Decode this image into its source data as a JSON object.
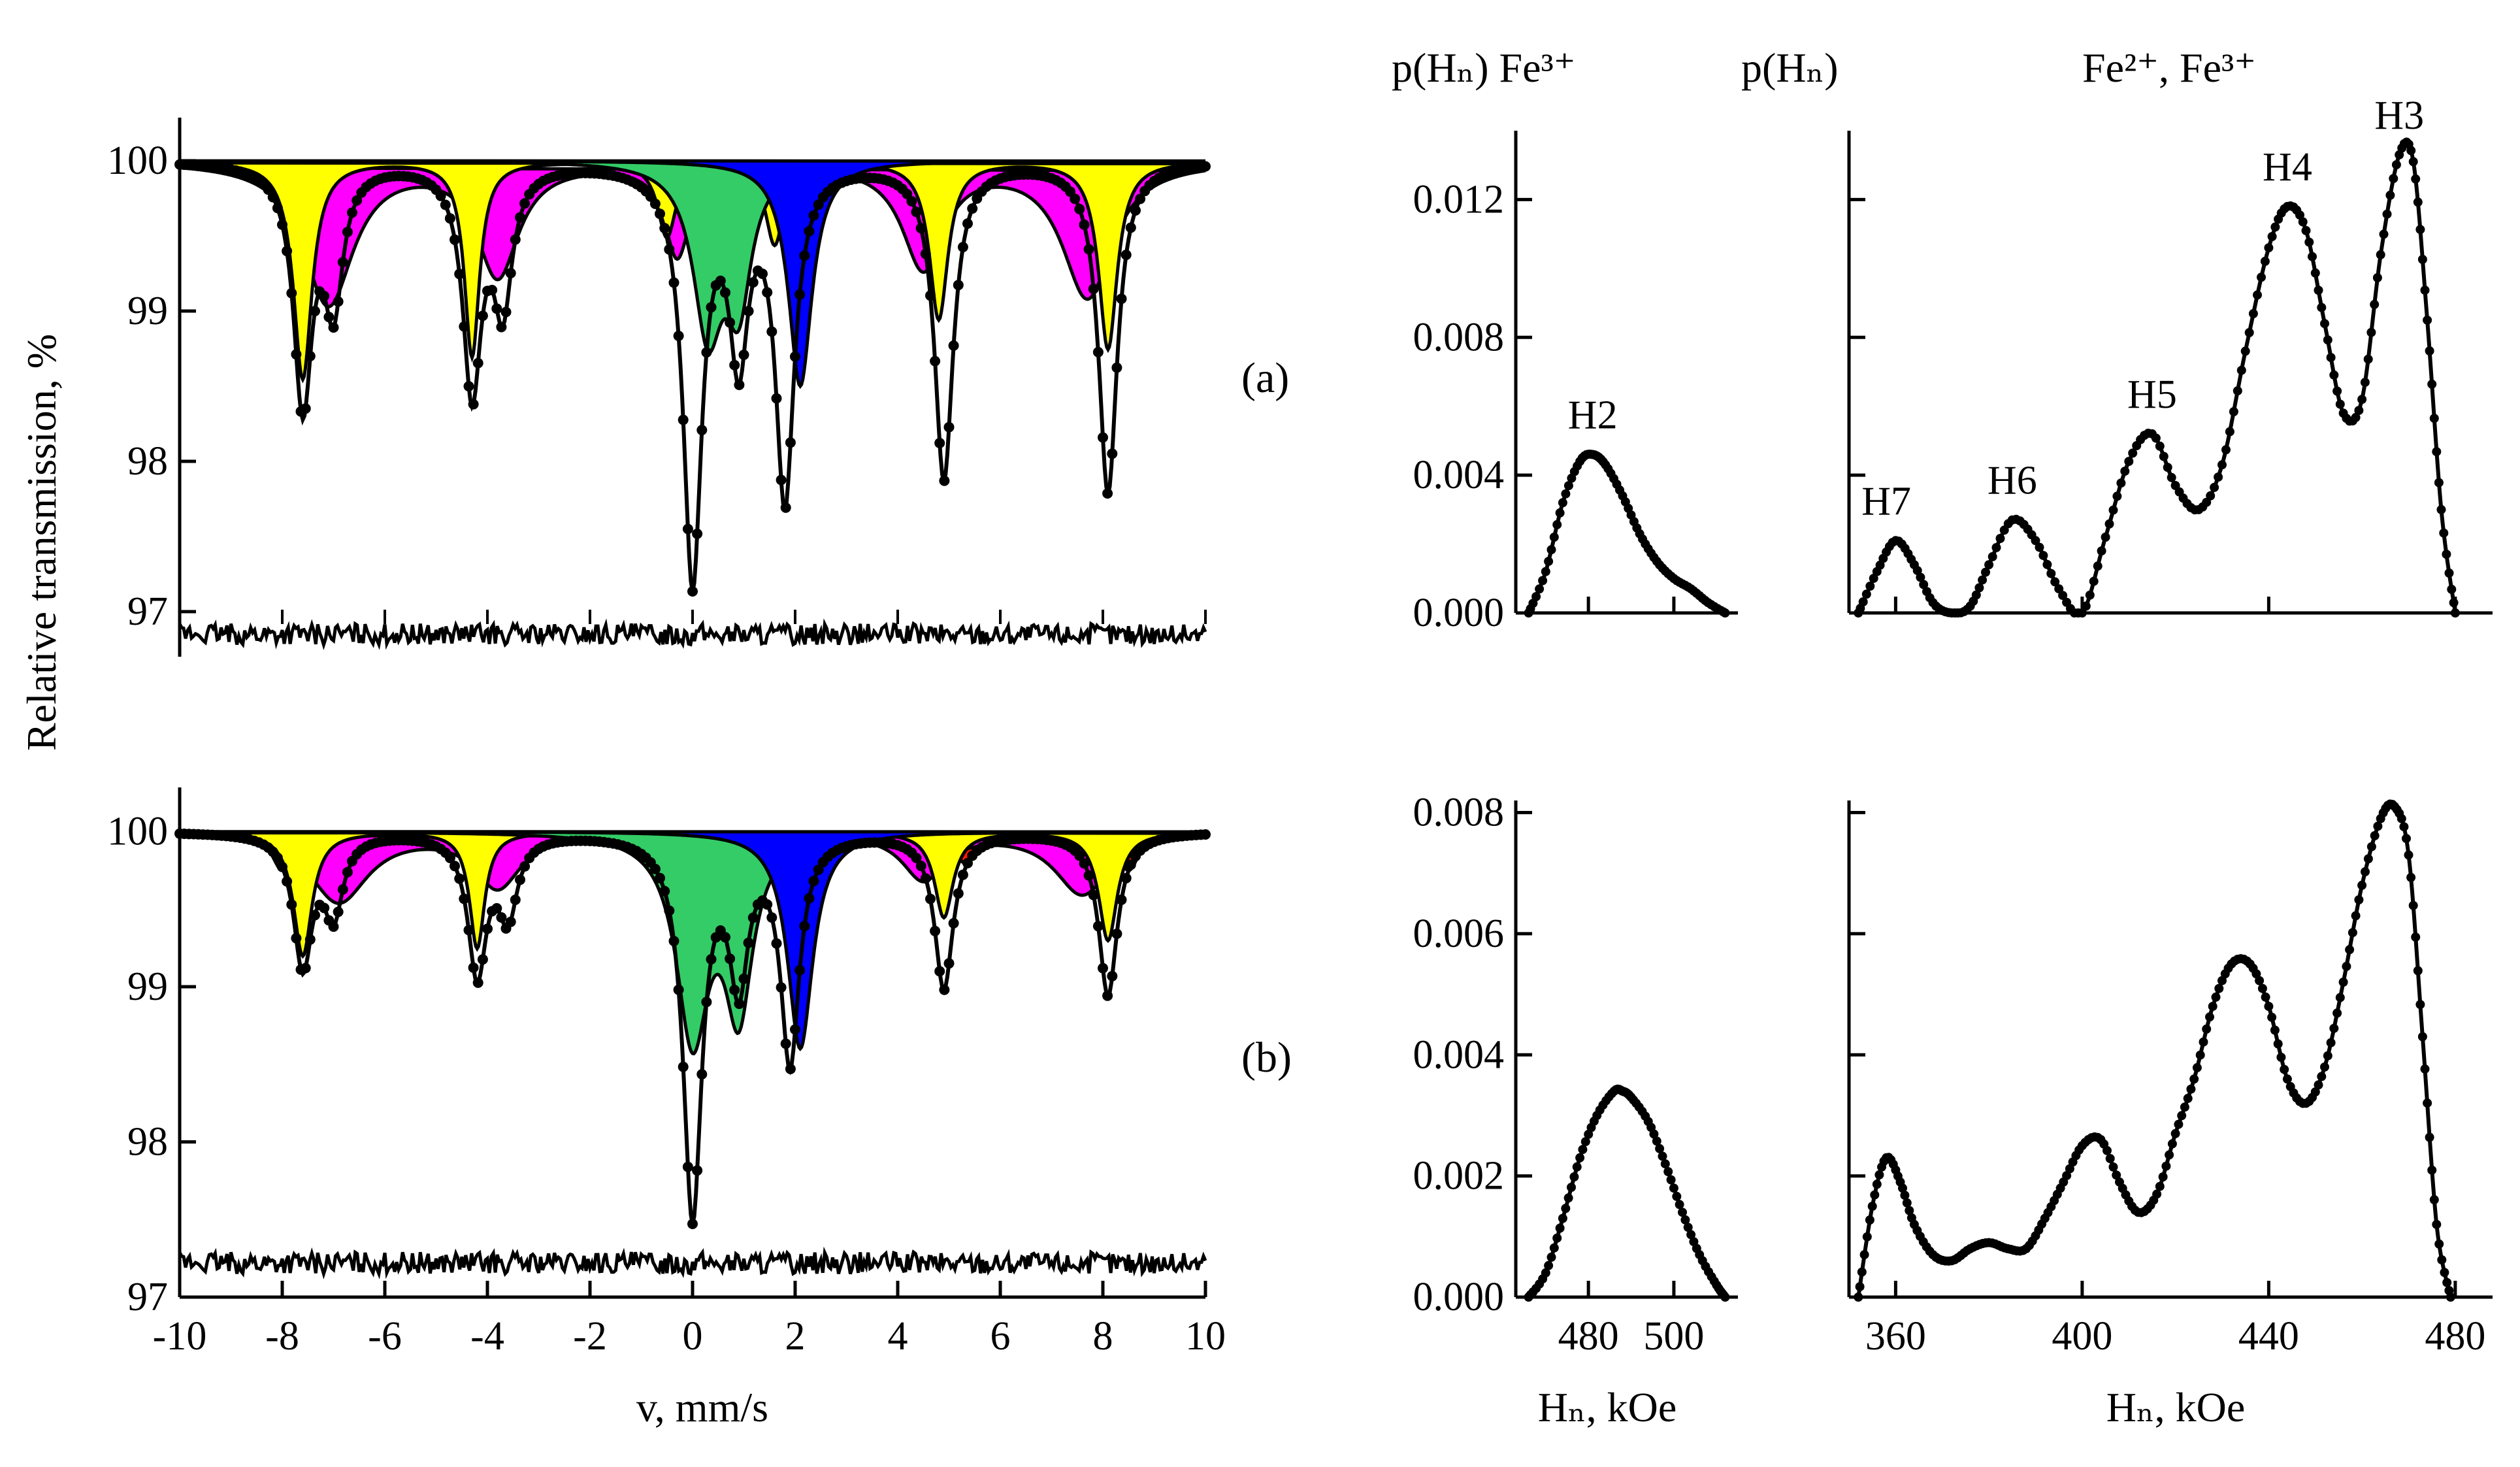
{
  "figure": {
    "ylabel_main": "Relative transmission, %",
    "xlabel_main": "v, mm/s",
    "header_left": "p(Hₙ)  Fe³⁺",
    "header_right_p": "p(Hₙ)",
    "header_right_fe": "Fe²⁺, Fe³⁺",
    "xlabel_hn": "Hₙ, kOe",
    "label_a": "(a)",
    "label_b": "(b)"
  },
  "colors": {
    "red": "#ff1a00",
    "yellow": "#ffff00",
    "magenta": "#ff00ff",
    "green": "#33cc66",
    "blue": "#0000ff",
    "line": "#000000"
  },
  "chart_data": [
    {
      "id": "spectrum-a",
      "type": "line",
      "xlim": [
        -10,
        10
      ],
      "ylim": [
        96.7,
        100.2
      ],
      "yticks": [
        97,
        98,
        99,
        100
      ],
      "xticks": [
        -10,
        -8,
        -6,
        -4,
        -2,
        0,
        2,
        4,
        6,
        8,
        10
      ],
      "experimental_dips": [
        {
          "v": -7.6,
          "depth": 1.6
        },
        {
          "v": -7.0,
          "depth": 0.9
        },
        {
          "v": -4.3,
          "depth": 1.5
        },
        {
          "v": -3.7,
          "depth": 0.9
        },
        {
          "v": 0.0,
          "depth": 2.75
        },
        {
          "v": 0.9,
          "depth": 1.2
        },
        {
          "v": 1.8,
          "depth": 2.2
        },
        {
          "v": 4.9,
          "depth": 2.1
        },
        {
          "v": 8.1,
          "depth": 2.2
        }
      ],
      "residual_level": 96.85
    },
    {
      "id": "spectrum-b",
      "type": "line",
      "xlim": [
        -10,
        10
      ],
      "ylim": [
        97,
        100.2
      ],
      "yticks": [
        97,
        98,
        99,
        100
      ],
      "xticks": [
        -10,
        -8,
        -6,
        -4,
        -2,
        0,
        2,
        4,
        6,
        8,
        10
      ],
      "experimental_dips": [
        {
          "v": -7.6,
          "depth": 0.85
        },
        {
          "v": -7.0,
          "depth": 0.5
        },
        {
          "v": -4.2,
          "depth": 0.9
        },
        {
          "v": -3.6,
          "depth": 0.5
        },
        {
          "v": 0.0,
          "depth": 2.45
        },
        {
          "v": 0.9,
          "depth": 0.9
        },
        {
          "v": 1.9,
          "depth": 1.45
        },
        {
          "v": 4.9,
          "depth": 1.0
        },
        {
          "v": 8.1,
          "depth": 1.05
        }
      ],
      "residual_level": 97.22
    },
    {
      "id": "pHn-fe3-a",
      "type": "line",
      "xlim": [
        463,
        515
      ],
      "xticks": [
        480,
        500
      ],
      "ylim": [
        0,
        0.014
      ],
      "yticks": [
        0.0,
        0.004,
        0.008,
        0.012
      ],
      "x": [
        466,
        470,
        474,
        478,
        481,
        484,
        488,
        492,
        496,
        500,
        504,
        508,
        512
      ],
      "y": [
        0.0,
        0.0012,
        0.0032,
        0.0044,
        0.0046,
        0.0043,
        0.0034,
        0.0023,
        0.0015,
        0.001,
        0.0007,
        0.0003,
        0.0
      ],
      "peak_labels": [
        {
          "text": "H2",
          "x": 481,
          "y": 0.0046
        }
      ]
    },
    {
      "id": "pHn-fe23-a",
      "type": "line",
      "xlim": [
        350,
        488
      ],
      "xticks": [
        360,
        400,
        440,
        480
      ],
      "ylim": [
        0,
        0.014
      ],
      "yticks": [
        0.0,
        0.004,
        0.008,
        0.012
      ],
      "x": [
        352,
        356,
        360,
        364,
        368,
        372,
        376,
        380,
        385,
        390,
        395,
        400,
        405,
        410,
        415,
        420,
        425,
        430,
        435,
        440,
        444,
        448,
        452,
        456,
        460,
        464,
        468,
        471,
        474,
        477,
        480
      ],
      "y": [
        0.0,
        0.0012,
        0.0021,
        0.0014,
        0.0003,
        0.0,
        0.0002,
        0.0014,
        0.0027,
        0.0021,
        0.0007,
        0.0,
        0.0022,
        0.0044,
        0.0052,
        0.0037,
        0.003,
        0.0043,
        0.0076,
        0.0106,
        0.0118,
        0.0111,
        0.0084,
        0.0058,
        0.0062,
        0.0104,
        0.0133,
        0.0131,
        0.0085,
        0.003,
        0.0
      ],
      "peak_labels": [
        {
          "text": "H7",
          "x": 358,
          "y": 0.0021
        },
        {
          "text": "H6",
          "x": 385,
          "y": 0.0027
        },
        {
          "text": "H5",
          "x": 415,
          "y": 0.0052
        },
        {
          "text": "H4",
          "x": 444,
          "y": 0.0118
        },
        {
          "text": "H3",
          "x": 468,
          "y": 0.0133
        }
      ]
    },
    {
      "id": "pHn-fe3-b",
      "type": "line",
      "xlim": [
        463,
        515
      ],
      "xticks": [
        480,
        500
      ],
      "ylim": [
        0,
        0.0082
      ],
      "yticks": [
        0.0,
        0.002,
        0.004,
        0.006,
        0.008
      ],
      "x": [
        466,
        470,
        474,
        478,
        482,
        486,
        488,
        490,
        494,
        498,
        502,
        506,
        510,
        512
      ],
      "y": [
        0.0,
        0.0004,
        0.0013,
        0.0023,
        0.003,
        0.0034,
        0.0034,
        0.0033,
        0.0029,
        0.0022,
        0.0014,
        0.0007,
        0.0002,
        0.0
      ],
      "peak_labels": []
    },
    {
      "id": "pHn-fe23-b",
      "type": "line",
      "xlim": [
        350,
        488
      ],
      "xticks": [
        360,
        400,
        440,
        480
      ],
      "ylim": [
        0,
        0.0082
      ],
      "yticks": [
        0.0,
        0.002,
        0.004,
        0.006,
        0.008
      ],
      "x": [
        352,
        355,
        358,
        361,
        364,
        368,
        372,
        376,
        380,
        384,
        388,
        392,
        396,
        400,
        404,
        408,
        412,
        416,
        420,
        424,
        428,
        432,
        436,
        440,
        444,
        448,
        452,
        456,
        460,
        464,
        467,
        470,
        473,
        476,
        479
      ],
      "y": [
        0.0,
        0.0015,
        0.0023,
        0.0019,
        0.0012,
        0.0007,
        0.0006,
        0.0008,
        0.0009,
        0.0008,
        0.0008,
        0.0013,
        0.0019,
        0.0025,
        0.0026,
        0.0019,
        0.0014,
        0.0017,
        0.0027,
        0.0036,
        0.0048,
        0.0055,
        0.0055,
        0.0048,
        0.0036,
        0.0032,
        0.0038,
        0.0052,
        0.0068,
        0.0079,
        0.0081,
        0.0073,
        0.0043,
        0.0012,
        0.0
      ]
    }
  ]
}
